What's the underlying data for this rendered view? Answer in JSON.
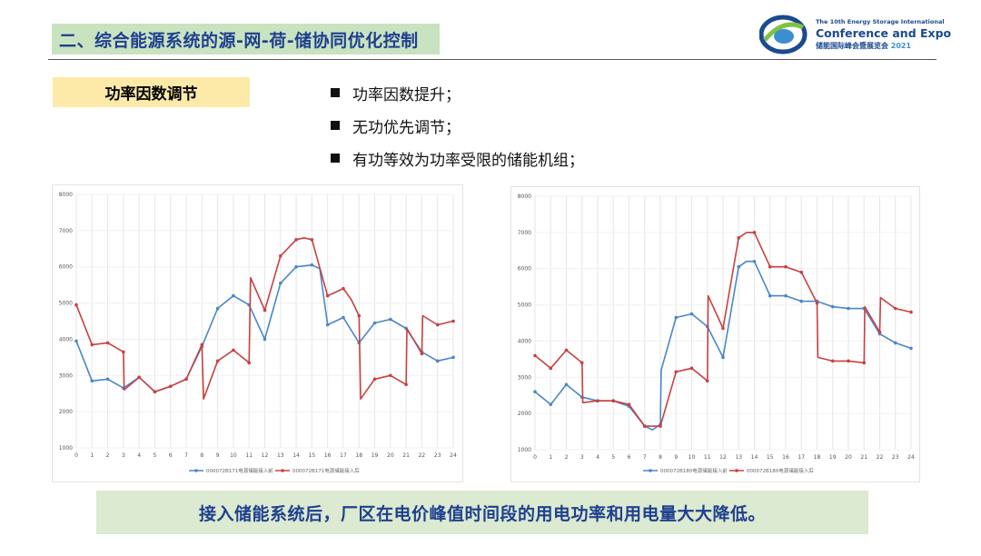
{
  "header": {
    "title": "二、综合能源系统的源-网-荷-储协同优化控制"
  },
  "logo": {
    "line1": "The 10th Energy Storage International",
    "line2": "Conference and Expo",
    "line3": "储能国际峰会暨展览会",
    "year": "2021",
    "colors": {
      "blue": "#1a4a8f",
      "green": "#7fc241",
      "lightblue": "#3b8fd0"
    }
  },
  "tag": {
    "label": "功率因数调节"
  },
  "bullets": [
    "功率因数提升；",
    "无功优先调节；",
    "有功等效为功率受限的储能机组；"
  ],
  "footer": {
    "text": "接入储能系统后，厂区在电价峰值时间段的用电功率和用电量大大降低。"
  },
  "chart_data": [
    {
      "type": "line",
      "x": [
        0,
        1,
        2,
        3,
        4,
        5,
        6,
        7,
        8,
        9,
        10,
        11,
        12,
        13,
        14,
        15,
        16,
        17,
        18,
        19,
        20,
        21,
        22,
        23,
        24
      ],
      "ylim": [
        1000,
        8000
      ],
      "yticks": [
        1000,
        2000,
        3000,
        4000,
        5000,
        6000,
        7000,
        8000
      ],
      "xticks": [
        0,
        1,
        2,
        3,
        4,
        5,
        6,
        7,
        8,
        9,
        10,
        11,
        12,
        13,
        14,
        15,
        16,
        17,
        18,
        19,
        20,
        21,
        22,
        23,
        24
      ],
      "grid": "vertical",
      "legend": "bottom",
      "series": [
        {
          "name": "000072B171电源储能接入前",
          "color": "#4a86c8",
          "points": [
            [
              0,
              3950
            ],
            [
              1,
              2850
            ],
            [
              2,
              2900
            ],
            [
              3,
              2650
            ],
            [
              4,
              2950
            ],
            [
              5,
              2550
            ],
            [
              6,
              2700
            ],
            [
              7,
              2900
            ],
            [
              8,
              3800
            ],
            [
              9,
              4850
            ],
            [
              10,
              5200
            ],
            [
              11,
              4950
            ],
            [
              12,
              4000
            ],
            [
              13,
              5550
            ],
            [
              14,
              6000
            ],
            [
              15,
              6050
            ],
            [
              15.5,
              5950
            ],
            [
              16,
              4400
            ],
            [
              17,
              4600
            ],
            [
              18,
              3900
            ],
            [
              19,
              4450
            ],
            [
              20,
              4550
            ],
            [
              21,
              4300
            ],
            [
              22,
              3650
            ],
            [
              23,
              3400
            ],
            [
              24,
              3500
            ]
          ]
        },
        {
          "name": "000072B171电源储能接入后",
          "color": "#c94040",
          "points": [
            [
              0,
              4950
            ],
            [
              1,
              3850
            ],
            [
              2,
              3900
            ],
            [
              3,
              3650
            ],
            [
              3.05,
              2600
            ],
            [
              4,
              2950
            ],
            [
              5,
              2550
            ],
            [
              6,
              2700
            ],
            [
              7,
              2900
            ],
            [
              8,
              3850
            ],
            [
              8.1,
              2350
            ],
            [
              9,
              3400
            ],
            [
              10,
              3700
            ],
            [
              11,
              3350
            ],
            [
              11.1,
              5700
            ],
            [
              12,
              4800
            ],
            [
              13,
              6300
            ],
            [
              14,
              6750
            ],
            [
              14.5,
              6800
            ],
            [
              15,
              6750
            ],
            [
              16,
              5200
            ],
            [
              17,
              5400
            ],
            [
              17.5,
              5100
            ],
            [
              18,
              4650
            ],
            [
              18.1,
              2350
            ],
            [
              19,
              2900
            ],
            [
              20,
              3000
            ],
            [
              21,
              2750
            ],
            [
              21.05,
              4300
            ],
            [
              22,
              3600
            ],
            [
              22.05,
              4650
            ],
            [
              23,
              4400
            ],
            [
              24,
              4500
            ]
          ]
        }
      ]
    },
    {
      "type": "line",
      "x": [
        0,
        1,
        2,
        3,
        4,
        5,
        6,
        7,
        8,
        9,
        10,
        11,
        12,
        13,
        14,
        15,
        16,
        17,
        18,
        19,
        20,
        21,
        22,
        23,
        24
      ],
      "ylim": [
        1000,
        8000
      ],
      "yticks": [
        1000,
        2000,
        3000,
        4000,
        5000,
        6000,
        7000,
        8000
      ],
      "xticks": [
        0,
        1,
        2,
        3,
        4,
        5,
        6,
        7,
        8,
        9,
        10,
        11,
        12,
        13,
        14,
        15,
        16,
        17,
        18,
        19,
        20,
        21,
        22,
        23,
        24
      ],
      "grid": "vertical",
      "legend": "bottom",
      "series": [
        {
          "name": "000072B180电源储能接入前",
          "color": "#4a86c8",
          "points": [
            [
              0,
              2600
            ],
            [
              1,
              2250
            ],
            [
              2,
              2800
            ],
            [
              3,
              2450
            ],
            [
              4,
              2350
            ],
            [
              5,
              2350
            ],
            [
              6,
              2200
            ],
            [
              7,
              1650
            ],
            [
              7.5,
              1550
            ],
            [
              8,
              1700
            ],
            [
              8.05,
              3200
            ],
            [
              9,
              4650
            ],
            [
              10,
              4750
            ],
            [
              11,
              4400
            ],
            [
              12,
              3550
            ],
            [
              13,
              6050
            ],
            [
              13.5,
              6200
            ],
            [
              14,
              6200
            ],
            [
              15,
              5250
            ],
            [
              16,
              5250
            ],
            [
              17,
              5100
            ],
            [
              18,
              5100
            ],
            [
              19,
              4950
            ],
            [
              20,
              4900
            ],
            [
              21,
              4900
            ],
            [
              22,
              4200
            ],
            [
              23,
              3950
            ],
            [
              24,
              3800
            ]
          ]
        },
        {
          "name": "000072B180电源储能接入后",
          "color": "#c94040",
          "points": [
            [
              0,
              3600
            ],
            [
              1,
              3250
            ],
            [
              2,
              3750
            ],
            [
              3,
              3400
            ],
            [
              3.05,
              2300
            ],
            [
              4,
              2350
            ],
            [
              5,
              2350
            ],
            [
              6,
              2250
            ],
            [
              7,
              1650
            ],
            [
              8,
              1650
            ],
            [
              9,
              3150
            ],
            [
              10,
              3250
            ],
            [
              11,
              2900
            ],
            [
              11.05,
              5250
            ],
            [
              12,
              4350
            ],
            [
              13,
              6850
            ],
            [
              13.5,
              7000
            ],
            [
              14,
              7000
            ],
            [
              15,
              6050
            ],
            [
              16,
              6050
            ],
            [
              17,
              5900
            ],
            [
              18,
              5050
            ],
            [
              18.05,
              3550
            ],
            [
              19,
              3450
            ],
            [
              20,
              3450
            ],
            [
              21,
              3400
            ],
            [
              21.05,
              4950
            ],
            [
              22,
              4250
            ],
            [
              22.05,
              5200
            ],
            [
              23,
              4900
            ],
            [
              24,
              4800
            ]
          ]
        }
      ]
    }
  ]
}
